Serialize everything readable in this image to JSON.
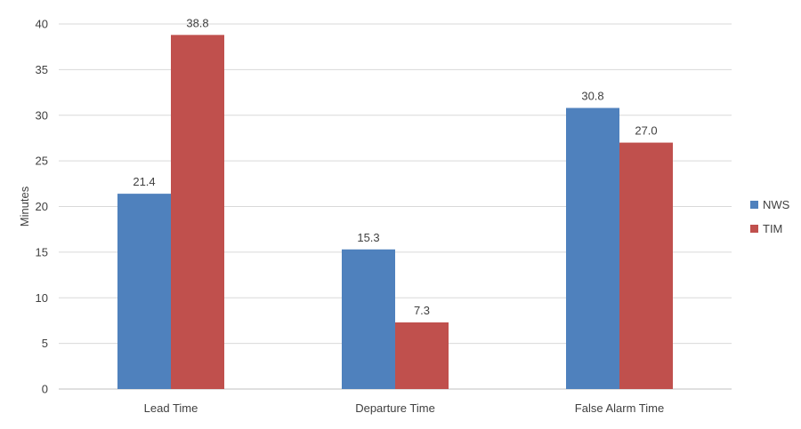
{
  "chart_data": {
    "type": "bar",
    "categories": [
      "Lead Time",
      "Departure Time",
      "False Alarm Time"
    ],
    "series": [
      {
        "name": "NWS",
        "values": [
          21.4,
          15.3,
          30.8
        ],
        "color": "#4f81bd"
      },
      {
        "name": "TIM",
        "values": [
          38.8,
          7.3,
          27.0
        ],
        "color": "#c0504d"
      }
    ],
    "ylabel": "Minutes",
    "ylim": [
      0,
      40
    ],
    "yticks": [
      0,
      5,
      10,
      15,
      20,
      25,
      30,
      35,
      40
    ],
    "grid": true,
    "legend_position": "right",
    "data_labels": true,
    "value_format_decimals": 1
  }
}
